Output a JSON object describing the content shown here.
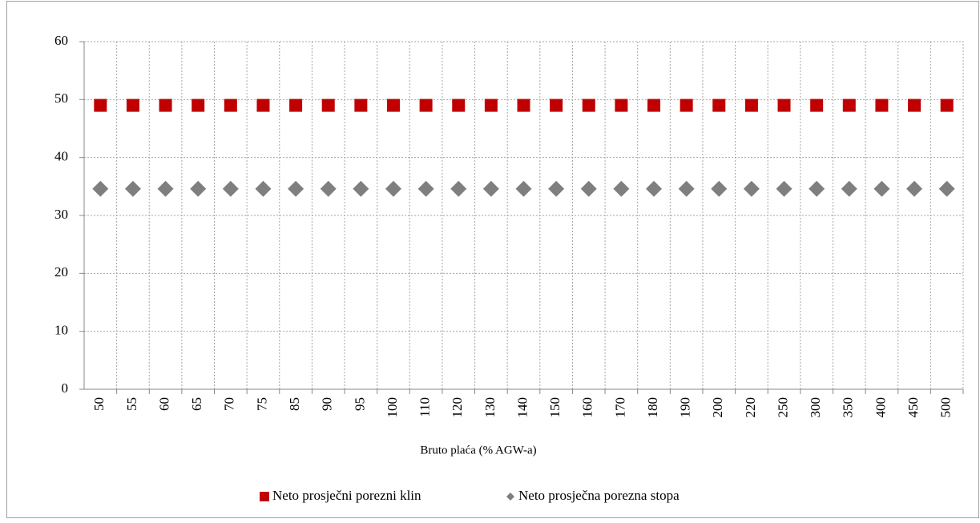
{
  "chart_data": {
    "type": "line",
    "x_label": "Bruto plaća (% AGW-a)",
    "categories": [
      "50",
      "55",
      "60",
      "65",
      "70",
      "75",
      "85",
      "90",
      "95",
      "100",
      "110",
      "120",
      "130",
      "140",
      "150",
      "160",
      "170",
      "180",
      "190",
      "200",
      "220",
      "250",
      "300",
      "350",
      "400",
      "450",
      "500"
    ],
    "series": [
      {
        "name": "Neto prosječni porezni klin",
        "color": "#c00000",
        "marker": "square",
        "values": [
          49,
          49,
          49,
          49,
          49,
          49,
          49,
          49,
          49,
          49,
          49,
          49,
          49,
          49,
          49,
          49,
          49,
          49,
          49,
          49,
          49,
          49,
          49,
          49,
          49,
          49,
          49
        ]
      },
      {
        "name": "Neto prosječna porezna stopa",
        "color": "#7f7f7f",
        "marker": "diamond",
        "values": [
          34.6,
          34.6,
          34.6,
          34.6,
          34.6,
          34.6,
          34.6,
          34.6,
          34.6,
          34.6,
          34.6,
          34.6,
          34.6,
          34.6,
          34.6,
          34.6,
          34.6,
          34.6,
          34.6,
          34.6,
          34.6,
          34.6,
          34.6,
          34.6,
          34.6,
          34.6,
          34.6
        ]
      }
    ],
    "ylim": [
      0,
      60
    ],
    "yticks": [
      0,
      10,
      20,
      30,
      40,
      50,
      60
    ],
    "grid": true,
    "legend": "bottom"
  }
}
